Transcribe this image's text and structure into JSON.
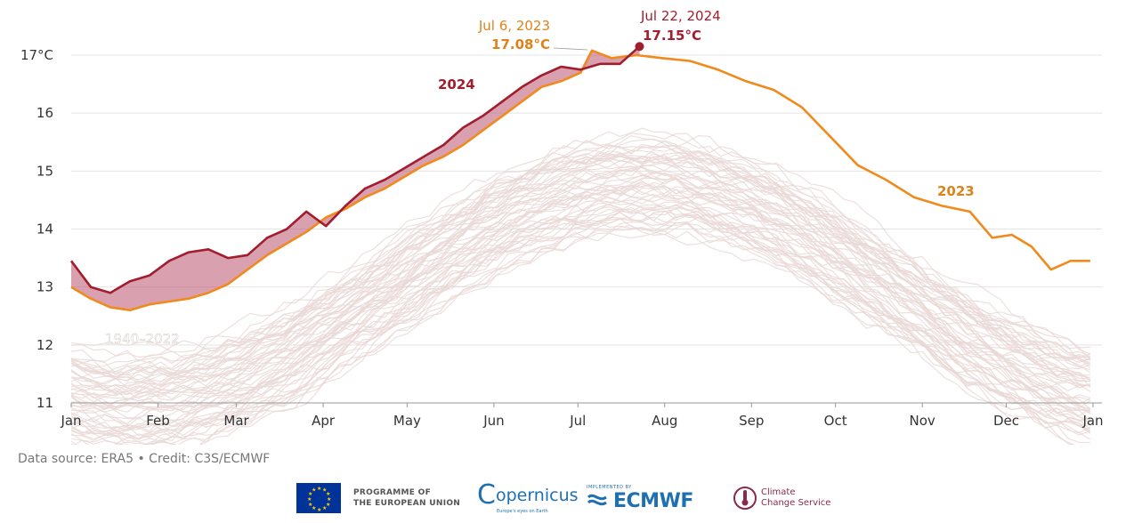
{
  "chart_data": {
    "type": "line",
    "ylim": [
      11,
      17.3
    ],
    "y_ticks": [
      "11",
      "12",
      "13",
      "14",
      "15",
      "16",
      "17°C"
    ],
    "x_ticks": [
      "Jan",
      "Feb",
      "Mar",
      "Apr",
      "May",
      "Jun",
      "Jul",
      "Aug",
      "Sep",
      "Oct",
      "Nov",
      "Dec",
      "Jan"
    ],
    "grid": true,
    "series": [
      {
        "name": "2023",
        "color": "#f08a1c",
        "points": [
          [
            1,
            13.0
          ],
          [
            8,
            12.8
          ],
          [
            15,
            12.65
          ],
          [
            22,
            12.6
          ],
          [
            29,
            12.7
          ],
          [
            36,
            12.75
          ],
          [
            43,
            12.8
          ],
          [
            50,
            12.9
          ],
          [
            57,
            13.05
          ],
          [
            64,
            13.3
          ],
          [
            71,
            13.55
          ],
          [
            78,
            13.75
          ],
          [
            85,
            13.95
          ],
          [
            92,
            14.2
          ],
          [
            99,
            14.35
          ],
          [
            106,
            14.55
          ],
          [
            113,
            14.7
          ],
          [
            120,
            14.9
          ],
          [
            127,
            15.1
          ],
          [
            134,
            15.25
          ],
          [
            141,
            15.45
          ],
          [
            148,
            15.7
          ],
          [
            155,
            15.95
          ],
          [
            162,
            16.2
          ],
          [
            169,
            16.45
          ],
          [
            176,
            16.55
          ],
          [
            183,
            16.7
          ],
          [
            187,
            17.08
          ],
          [
            194,
            16.95
          ],
          [
            203,
            17.0
          ],
          [
            212,
            16.95
          ],
          [
            222,
            16.9
          ],
          [
            232,
            16.75
          ],
          [
            242,
            16.55
          ],
          [
            252,
            16.4
          ],
          [
            262,
            16.1
          ],
          [
            272,
            15.6
          ],
          [
            282,
            15.1
          ],
          [
            292,
            14.85
          ],
          [
            302,
            14.55
          ],
          [
            312,
            14.4
          ],
          [
            322,
            14.3
          ],
          [
            330,
            13.85
          ],
          [
            337,
            13.9
          ],
          [
            344,
            13.7
          ],
          [
            351,
            13.3
          ],
          [
            358,
            13.45
          ],
          [
            365,
            13.45
          ]
        ]
      },
      {
        "name": "2024",
        "color": "#a21d2e",
        "points": [
          [
            1,
            13.45
          ],
          [
            8,
            13.0
          ],
          [
            15,
            12.9
          ],
          [
            22,
            13.1
          ],
          [
            29,
            13.2
          ],
          [
            36,
            13.45
          ],
          [
            43,
            13.6
          ],
          [
            50,
            13.65
          ],
          [
            57,
            13.5
          ],
          [
            64,
            13.55
          ],
          [
            71,
            13.85
          ],
          [
            78,
            14.0
          ],
          [
            85,
            14.3
          ],
          [
            92,
            14.05
          ],
          [
            99,
            14.4
          ],
          [
            106,
            14.7
          ],
          [
            113,
            14.85
          ],
          [
            120,
            15.05
          ],
          [
            127,
            15.25
          ],
          [
            134,
            15.45
          ],
          [
            141,
            15.75
          ],
          [
            148,
            15.95
          ],
          [
            155,
            16.2
          ],
          [
            162,
            16.45
          ],
          [
            169,
            16.65
          ],
          [
            176,
            16.8
          ],
          [
            183,
            16.75
          ],
          [
            190,
            16.85
          ],
          [
            197,
            16.85
          ],
          [
            204,
            17.15
          ]
        ]
      }
    ],
    "historical_range_label": "1940–2022",
    "historical_color": "#e8d8d6",
    "fill_color": "#c0607a",
    "annotations": {
      "label_2024": "2024",
      "label_2023": "2023",
      "peak_2023_date": "Jul 6, 2023",
      "peak_2023_value": "17.08°C",
      "peak_2024_date": "Jul 22, 2024",
      "peak_2024_value": "17.15°C"
    }
  },
  "footer": {
    "source": "Data source: ERA5 • Credit: C3S/ECMWF",
    "eu_line1": "PROGRAMME OF",
    "eu_line2": "THE EUROPEAN UNION",
    "copernicus": "opernicus",
    "copernicus_sub": "Europe's eyes on Earth",
    "ecmwf_sub": "IMPLEMENTED BY",
    "ecmwf": "ECMWF",
    "c3s_line1": "Climate",
    "c3s_line2": "Change Service"
  }
}
